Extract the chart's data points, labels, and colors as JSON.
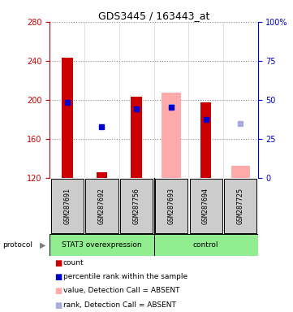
{
  "title": "GDS3445 / 163443_at",
  "samples": [
    "GSM287691",
    "GSM287692",
    "GSM287756",
    "GSM287693",
    "GSM287694",
    "GSM287725"
  ],
  "group_boundary": 3,
  "ylim_left": [
    120,
    280
  ],
  "ylim_right": [
    0,
    100
  ],
  "yticks_left": [
    120,
    160,
    200,
    240,
    280
  ],
  "yticks_right": [
    0,
    25,
    50,
    75,
    100
  ],
  "ytick_labels_right": [
    "0",
    "25",
    "50",
    "75",
    "100%"
  ],
  "count_values": [
    243,
    126,
    203,
    null,
    197,
    null
  ],
  "rank_values": [
    197,
    172,
    191,
    192,
    180,
    null
  ],
  "absent_bar_values": [
    null,
    null,
    null,
    207,
    null,
    132
  ],
  "absent_rank_values": [
    null,
    null,
    null,
    193,
    null,
    176
  ],
  "count_color": "#cc0000",
  "rank_color": "#0000cc",
  "absent_bar_color": "#ffaaaa",
  "absent_rank_color": "#aaaadd",
  "left_tick_color": "#cc0000",
  "right_tick_color": "#0000cc",
  "group1_color": "#90ee90",
  "group2_color": "#90ee90",
  "sample_box_color": "#cccccc",
  "group1_label": "STAT3 overexpression",
  "group2_label": "control",
  "legend_items": [
    {
      "color": "#cc0000",
      "label": "count"
    },
    {
      "color": "#0000cc",
      "label": "percentile rank within the sample"
    },
    {
      "color": "#ffaaaa",
      "label": "value, Detection Call = ABSENT"
    },
    {
      "color": "#aaaadd",
      "label": "rank, Detection Call = ABSENT"
    }
  ]
}
